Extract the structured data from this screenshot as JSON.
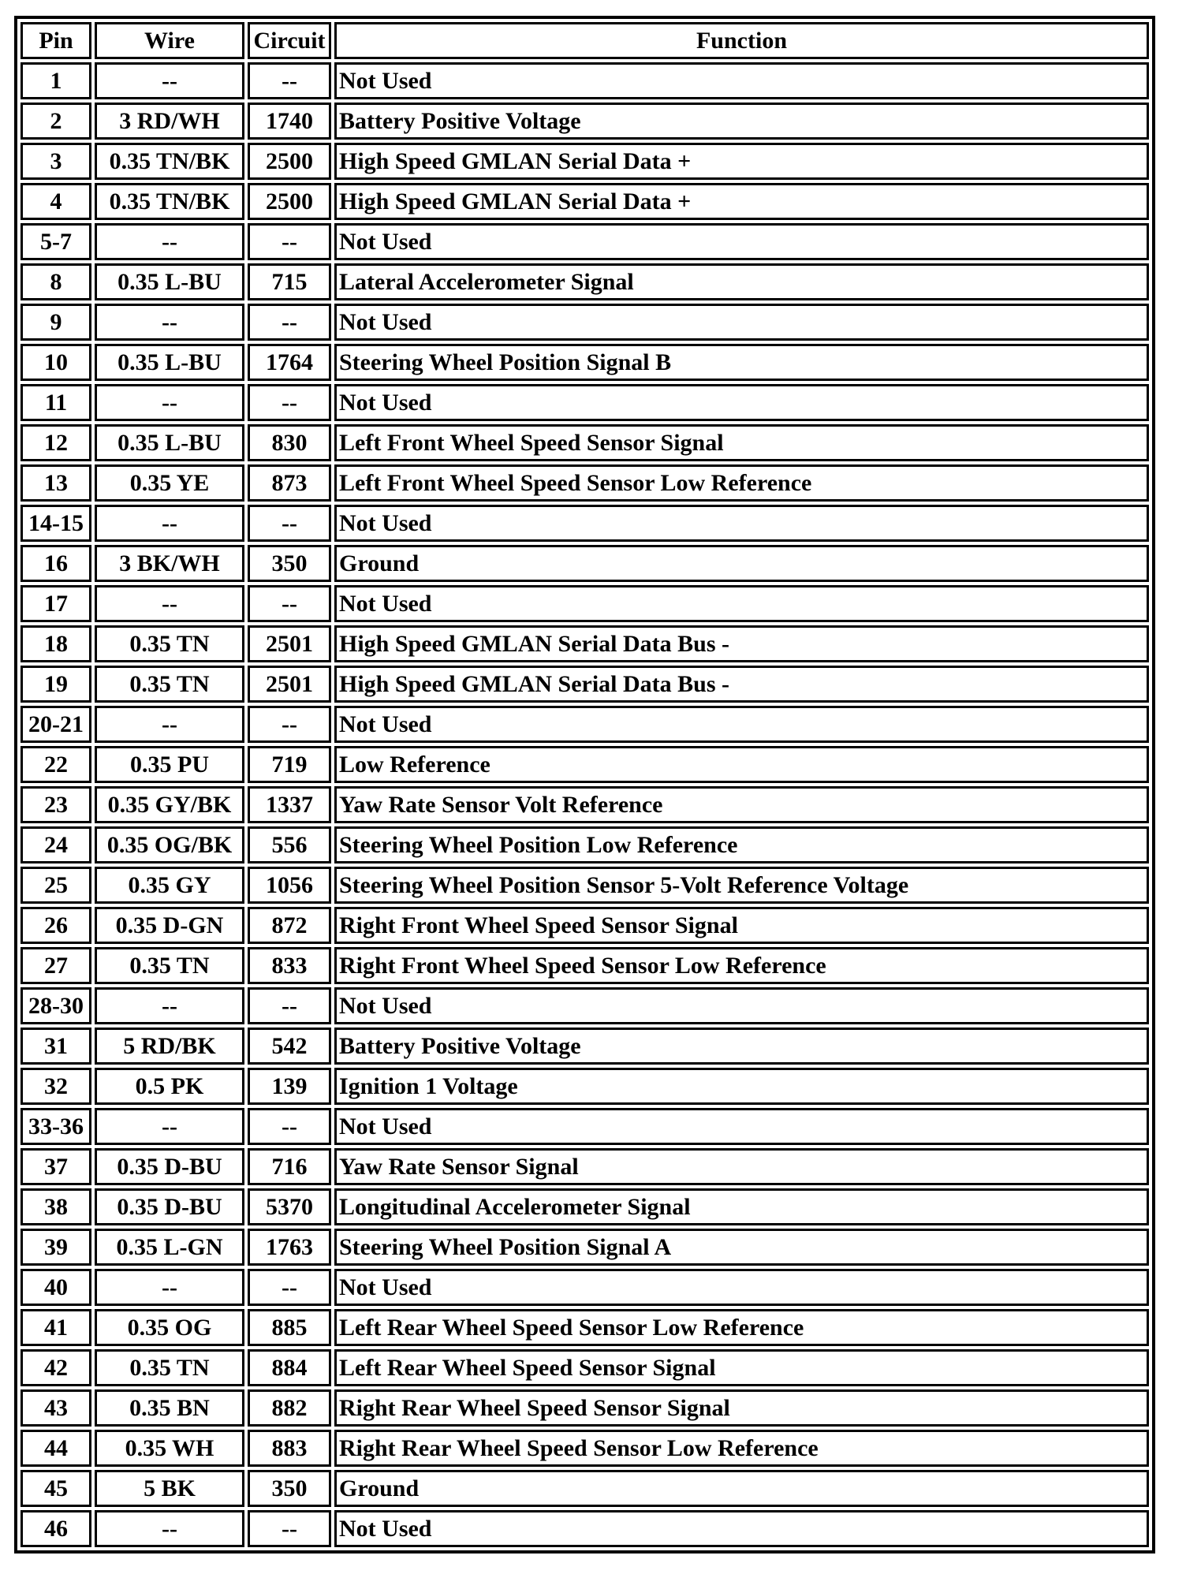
{
  "table": {
    "headers": [
      "Pin",
      "Wire",
      "Circuit",
      "Function"
    ],
    "rows": [
      [
        "1",
        "--",
        "--",
        "Not Used"
      ],
      [
        "2",
        "3 RD/WH",
        "1740",
        "Battery Positive Voltage"
      ],
      [
        "3",
        "0.35 TN/BK",
        "2500",
        "High Speed GMLAN Serial Data +"
      ],
      [
        "4",
        "0.35 TN/BK",
        "2500",
        "High Speed GMLAN Serial Data +"
      ],
      [
        "5-7",
        "--",
        "--",
        "Not Used"
      ],
      [
        "8",
        "0.35 L-BU",
        "715",
        "Lateral Accelerometer Signal"
      ],
      [
        "9",
        "--",
        "--",
        "Not Used"
      ],
      [
        "10",
        "0.35 L-BU",
        "1764",
        "Steering Wheel Position Signal B"
      ],
      [
        "11",
        "--",
        "--",
        "Not Used"
      ],
      [
        "12",
        "0.35 L-BU",
        "830",
        "Left Front Wheel Speed Sensor Signal"
      ],
      [
        "13",
        "0.35 YE",
        "873",
        "Left Front Wheel Speed Sensor Low Reference"
      ],
      [
        "14-15",
        "--",
        "--",
        "Not Used"
      ],
      [
        "16",
        "3 BK/WH",
        "350",
        "Ground"
      ],
      [
        "17",
        "--",
        "--",
        "Not Used"
      ],
      [
        "18",
        "0.35 TN",
        "2501",
        "High Speed GMLAN Serial Data Bus -"
      ],
      [
        "19",
        "0.35 TN",
        "2501",
        "High Speed GMLAN Serial Data Bus -"
      ],
      [
        "20-21",
        "--",
        "--",
        "Not Used"
      ],
      [
        "22",
        "0.35 PU",
        "719",
        "Low Reference"
      ],
      [
        "23",
        "0.35 GY/BK",
        "1337",
        "Yaw Rate Sensor Volt Reference"
      ],
      [
        "24",
        "0.35 OG/BK",
        "556",
        "Steering Wheel Position Low Reference"
      ],
      [
        "25",
        "0.35 GY",
        "1056",
        "Steering Wheel Position Sensor 5-Volt Reference Voltage"
      ],
      [
        "26",
        "0.35 D-GN",
        "872",
        "Right Front Wheel Speed Sensor Signal"
      ],
      [
        "27",
        "0.35 TN",
        "833",
        "Right Front Wheel Speed Sensor Low Reference"
      ],
      [
        "28-30",
        "--",
        "--",
        "Not Used"
      ],
      [
        "31",
        "5 RD/BK",
        "542",
        "Battery Positive Voltage"
      ],
      [
        "32",
        "0.5 PK",
        "139",
        "Ignition 1 Voltage"
      ],
      [
        "33-36",
        "--",
        "--",
        "Not Used"
      ],
      [
        "37",
        "0.35 D-BU",
        "716",
        "Yaw Rate Sensor Signal"
      ],
      [
        "38",
        "0.35 D-BU",
        "5370",
        "Longitudinal Accelerometer Signal"
      ],
      [
        "39",
        "0.35 L-GN",
        "1763",
        "Steering Wheel Position Signal A"
      ],
      [
        "40",
        "--",
        "--",
        "Not Used"
      ],
      [
        "41",
        "0.35 OG",
        "885",
        "Left Rear Wheel Speed Sensor Low Reference"
      ],
      [
        "42",
        "0.35 TN",
        "884",
        "Left Rear Wheel Speed Sensor Signal"
      ],
      [
        "43",
        "0.35 BN",
        "882",
        "Right Rear Wheel Speed Sensor Signal"
      ],
      [
        "44",
        "0.35 WH",
        "883",
        "Right Rear Wheel Speed Sensor Low Reference"
      ],
      [
        "45",
        "5 BK",
        "350",
        "Ground"
      ],
      [
        "46",
        "--",
        "--",
        "Not Used"
      ]
    ],
    "colors": {
      "border": "#000000",
      "text": "#000000",
      "background": "#ffffff"
    }
  }
}
